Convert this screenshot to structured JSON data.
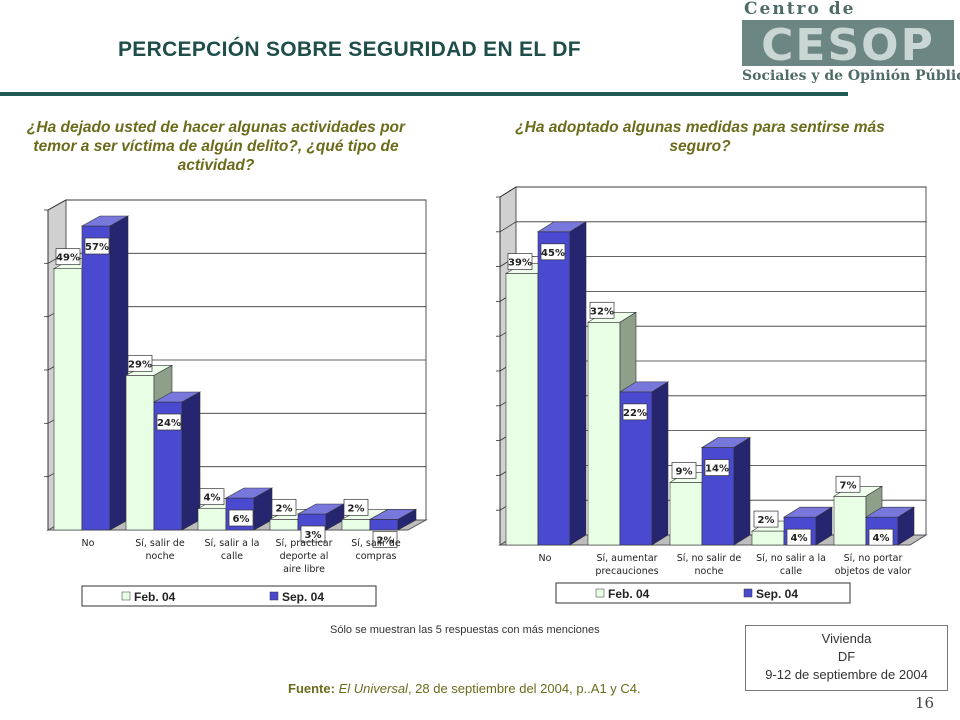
{
  "title": "PERCEPCIÓN SOBRE SEGURIDAD EN EL DF",
  "logo": {
    "line1": "Centro de Estudios",
    "mark": "CESOP",
    "line2": "Sociales y de Opinión Pública"
  },
  "question_left": "¿Ha dejado usted de hacer algunas actividades por temor a ser víctima de algún delito?, ¿qué tipo de actividad?",
  "question_right": "¿Ha adoptado algunas medidas para sentirse más seguro?",
  "note": "Sólo se muestran las 5 respuestas con más menciones",
  "source": {
    "label": "Fuente:",
    "publication": "El Universal",
    "rest": ", 28  de septiembre del 2004, p..A1 y C4."
  },
  "info": {
    "line1": "Vivienda",
    "line2": "DF",
    "line3": "9-12 de septiembre de 2004"
  },
  "page_number": "16",
  "colors": {
    "feb": "#e8ffe6",
    "sep": "#4a4ad0",
    "title": "#1f4e4a",
    "question": "#6b6b1b"
  },
  "chart_data": [
    {
      "type": "bar",
      "categories": [
        "No",
        "Sí, salir de noche",
        "Sí, salir a la calle",
        "Sí, practicar deporte al aire libre",
        "Sí, salir de compras"
      ],
      "category_lines": [
        [
          "No"
        ],
        [
          "Sí, salir de",
          "noche"
        ],
        [
          "Sí, salir a la",
          "calle"
        ],
        [
          "Sí, practicar",
          "deporte al",
          "aire libre"
        ],
        [
          "Sí, salir de",
          "compras"
        ]
      ],
      "series": [
        {
          "name": "Feb. 04",
          "values": [
            49,
            29,
            4,
            2,
            2
          ]
        },
        {
          "name": "Sep. 04",
          "values": [
            57,
            24,
            6,
            3,
            2
          ]
        }
      ],
      "unit": "%",
      "legend": "bottom"
    },
    {
      "type": "bar",
      "categories": [
        "No",
        "Sí, aumentar precauciones",
        "Sí, no salir de noche",
        "Sí, no salir a la calle",
        "Sí, no portar objetos de valor"
      ],
      "category_lines": [
        [
          "No"
        ],
        [
          "Sí, aumentar",
          "precauciones"
        ],
        [
          "Sí, no salir de",
          "noche"
        ],
        [
          "Sí, no salir a la",
          "calle"
        ],
        [
          "Sí, no portar",
          "objetos de valor"
        ]
      ],
      "series": [
        {
          "name": "Feb. 04",
          "values": [
            39,
            32,
            9,
            2,
            7
          ]
        },
        {
          "name": "Sep. 04",
          "values": [
            45,
            22,
            14,
            4,
            4
          ]
        }
      ],
      "unit": "%",
      "legend": "bottom"
    }
  ]
}
